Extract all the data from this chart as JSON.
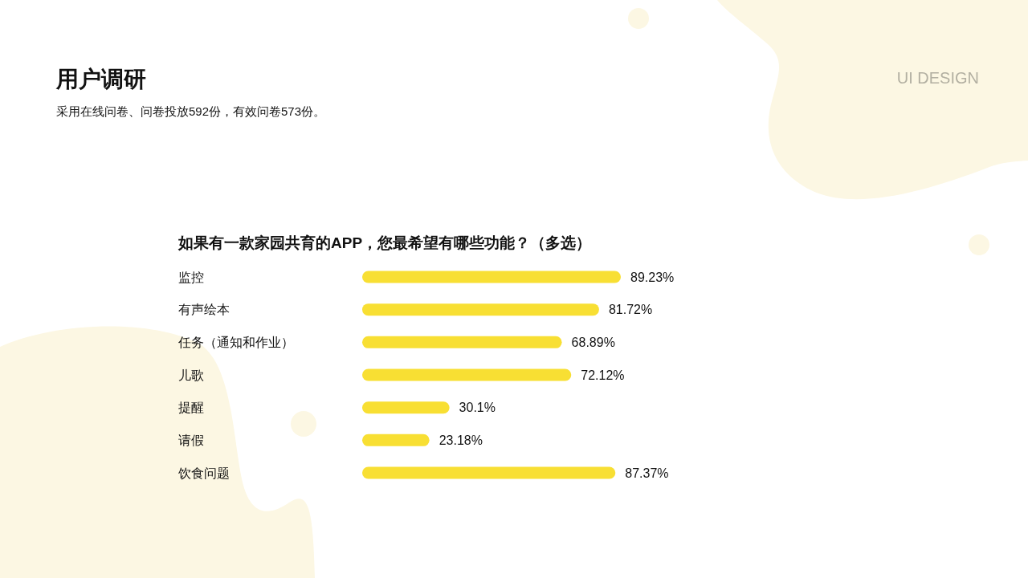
{
  "chart_data": {
    "type": "bar",
    "orientation": "horizontal",
    "title": "如果有一款家园共育的APP，您最希望有哪些功能？（多选）",
    "annotations": [
      "用户调研",
      "采用在线问卷、问卷投放592份，有效问卷573份。",
      "UI DESIGN"
    ],
    "categories": [
      "监控",
      "有声绘本",
      "任务（通知和作业）",
      "儿歌",
      "提醒",
      "请假",
      "饮食问题"
    ],
    "values": [
      89.23,
      81.72,
      68.89,
      72.12,
      30.1,
      23.18,
      87.37
    ],
    "value_labels": [
      "89.23%",
      "81.72%",
      "68.89%",
      "72.12%",
      "30.1%",
      "23.18%",
      "87.37%"
    ],
    "color": "#f8df33",
    "tick_labels": "y"
  }
}
